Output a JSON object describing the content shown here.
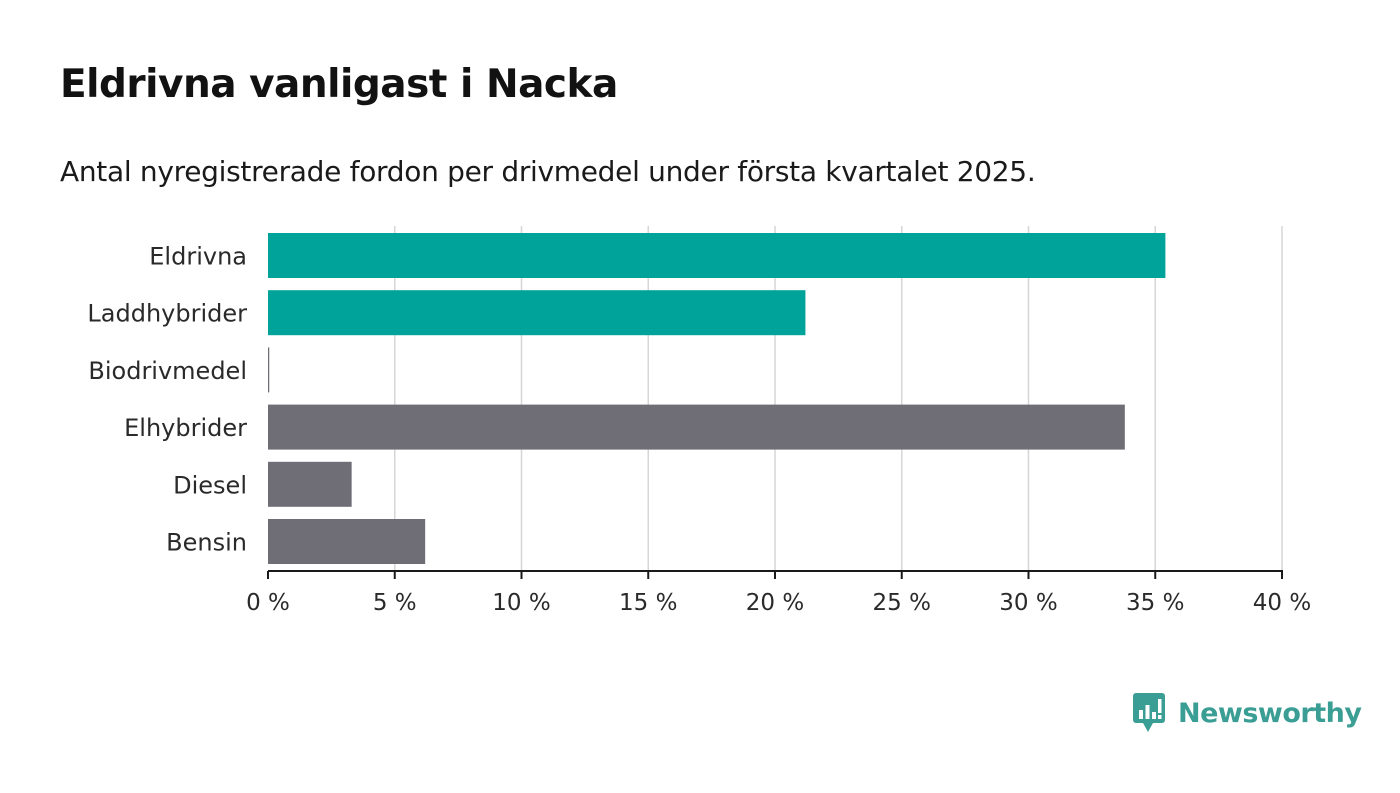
{
  "title": "Eldrivna vanligast i Nacka",
  "subtitle": "Antal nyregistrerade fordon per drivmedel under första kvartalet 2025.",
  "brand": {
    "name": "Newsworthy",
    "color": "#3a9e94"
  },
  "colors": {
    "highlight": "#00a39a",
    "default": "#6f6e76",
    "grid": "#d6d6d6",
    "axis": "#1a1a1a"
  },
  "chart_data": {
    "type": "bar",
    "orientation": "horizontal",
    "categories": [
      "Eldrivna",
      "Laddhybrider",
      "Biodrivmedel",
      "Elhybrider",
      "Diesel",
      "Bensin"
    ],
    "values": [
      35.4,
      21.2,
      0.05,
      33.8,
      3.3,
      6.2
    ],
    "highlight": [
      true,
      true,
      false,
      false,
      false,
      false
    ],
    "xlim": [
      0,
      40
    ],
    "xticks": [
      0,
      5,
      10,
      15,
      20,
      25,
      30,
      35,
      40
    ],
    "xtick_labels": [
      "0 %",
      "5 %",
      "10 %",
      "15 %",
      "20 %",
      "25 %",
      "30 %",
      "35 %",
      "40 %"
    ],
    "grid": true,
    "title": "Eldrivna vanligast i Nacka",
    "xlabel": "",
    "ylabel": ""
  }
}
